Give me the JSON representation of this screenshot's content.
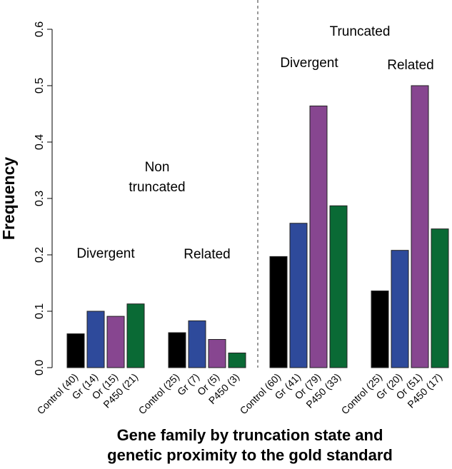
{
  "chart_data": {
    "type": "bar",
    "title": "",
    "xlabel": "Gene family by truncation state and genetic proximity to the gold standard",
    "xlabel_lines": [
      "Gene family by truncation state and",
      "genetic proximity to the gold standard"
    ],
    "ylabel": "Frequency",
    "ylim": [
      0,
      0.6
    ],
    "yticks": [
      "0.0",
      "0.1",
      "0.2",
      "0.3",
      "0.4",
      "0.5",
      "0.6"
    ],
    "grid": false,
    "colors": {
      "Control": "#000000",
      "Gr": "#2e4a9b",
      "Or": "#874690",
      "P450": "#0a6a35"
    },
    "groups": [
      {
        "name": "Non truncated - Divergent",
        "categories": [
          "Control (40)",
          "Gr (14)",
          "Or (15)",
          "P450 (21)"
        ],
        "values": [
          0.06,
          0.1,
          0.091,
          0.113
        ]
      },
      {
        "name": "Non truncated - Related",
        "categories": [
          "Control (25)",
          "Gr (7)",
          "Or (5)",
          "P450 (3)"
        ],
        "values": [
          0.062,
          0.083,
          0.05,
          0.026
        ]
      },
      {
        "name": "Truncated - Divergent",
        "categories": [
          "Control (60)",
          "Gr (41)",
          "Or (79)",
          "P450 (33)"
        ],
        "values": [
          0.197,
          0.256,
          0.464,
          0.287
        ]
      },
      {
        "name": "Truncated - Related",
        "categories": [
          "Control (25)",
          "Gr (20)",
          "Or (51)",
          "P450 (17)"
        ],
        "values": [
          0.136,
          0.208,
          0.5,
          0.246
        ]
      }
    ],
    "annotations": {
      "non_truncated_1": "Non",
      "non_truncated_2": "truncated",
      "truncated": "Truncated",
      "divergent_left": "Divergent",
      "related_left": "Related",
      "divergent_right": "Divergent",
      "related_right": "Related"
    }
  }
}
